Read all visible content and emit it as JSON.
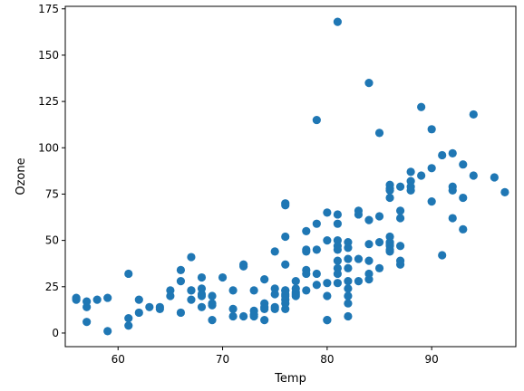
{
  "chart_data": {
    "type": "scatter",
    "title": "",
    "xlabel": "Temp",
    "ylabel": "Ozone",
    "xlim": [
      54.95,
      98.05
    ],
    "ylim": [
      -7.35,
      176.35
    ],
    "xticks": [
      60,
      70,
      80,
      90
    ],
    "yticks": [
      0,
      25,
      50,
      75,
      100,
      125,
      150,
      175
    ],
    "grid": false,
    "legend": "none",
    "color": "#1f77b4",
    "series": [
      {
        "x": [
          56,
          56,
          57,
          57,
          57,
          58,
          59,
          59,
          61,
          61,
          61,
          62,
          62,
          63,
          64,
          64,
          65,
          65,
          66,
          66,
          66,
          67,
          67,
          67,
          67,
          68,
          68,
          68,
          68,
          68,
          69,
          69,
          69,
          69,
          70,
          71,
          71,
          71,
          72,
          72,
          72,
          73,
          73,
          73,
          73,
          74,
          74,
          74,
          74,
          74,
          75,
          75,
          75,
          75,
          75,
          76,
          76,
          76,
          76,
          76,
          76,
          76,
          76,
          76,
          76,
          76,
          77,
          77,
          77,
          77,
          77,
          78,
          78,
          78,
          78,
          78,
          78,
          79,
          79,
          79,
          79,
          79,
          80,
          80,
          80,
          80,
          80,
          80,
          81,
          81,
          81,
          81,
          81,
          81,
          81,
          81,
          81,
          81,
          82,
          82,
          82,
          82,
          82,
          82,
          82,
          82,
          82,
          83,
          83,
          83,
          83,
          84,
          84,
          84,
          84,
          84,
          84,
          85,
          85,
          85,
          85,
          86,
          86,
          86,
          86,
          86,
          86,
          86,
          86,
          86,
          86,
          87,
          87,
          87,
          87,
          87,
          87,
          88,
          88,
          88,
          88,
          89,
          89,
          90,
          90,
          90,
          91,
          91,
          92,
          92,
          92,
          92,
          93,
          93,
          93,
          94,
          94,
          96,
          97
        ],
        "y": [
          19,
          18,
          6,
          14,
          17,
          18,
          19,
          1,
          32,
          8,
          4,
          18,
          11,
          14,
          14,
          13,
          23,
          20,
          34,
          28,
          11,
          41,
          23,
          18,
          23,
          30,
          24,
          21,
          20,
          14,
          20,
          15,
          16,
          7,
          30,
          23,
          13,
          9,
          37,
          36,
          9,
          23,
          12,
          10,
          9,
          29,
          16,
          14,
          7,
          13,
          44,
          24,
          21,
          14,
          13,
          70,
          69,
          52,
          37,
          23,
          21,
          18,
          16,
          13,
          20,
          23,
          28,
          24,
          21,
          22,
          20,
          55,
          45,
          44,
          34,
          32,
          23,
          115,
          59,
          45,
          32,
          26,
          7,
          65,
          50,
          27,
          20,
          7,
          168,
          64,
          59,
          50,
          47,
          45,
          39,
          35,
          32,
          27,
          49,
          46,
          40,
          35,
          28,
          24,
          20,
          16,
          9,
          66,
          64,
          40,
          28,
          135,
          61,
          48,
          39,
          32,
          29,
          108,
          63,
          49,
          35,
          80,
          78,
          77,
          73,
          52,
          49,
          48,
          47,
          45,
          44,
          79,
          66,
          62,
          47,
          39,
          37,
          87,
          82,
          79,
          77,
          122,
          85,
          110,
          89,
          71,
          96,
          42,
          97,
          79,
          77,
          62,
          91,
          73,
          56,
          118,
          85,
          84,
          76
        ]
      }
    ]
  }
}
